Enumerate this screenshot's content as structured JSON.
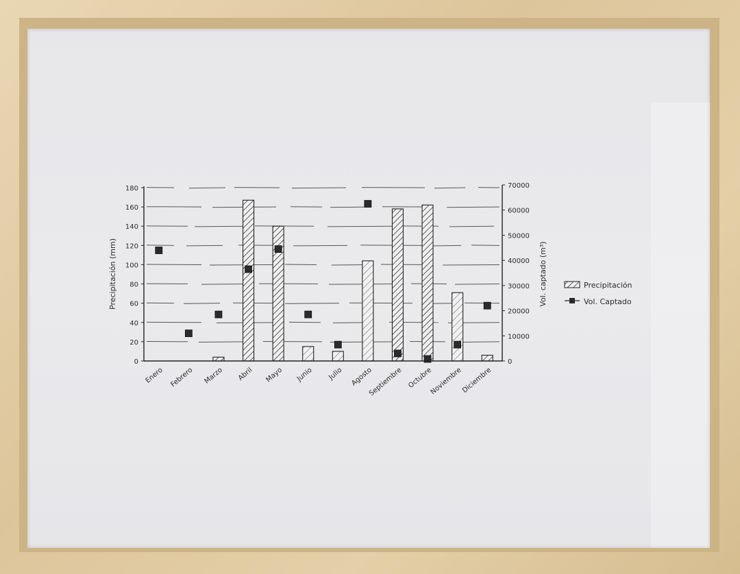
{
  "chart_data": {
    "type": "bar",
    "categories": [
      "Enero",
      "Febrero",
      "Marzo",
      "Abril",
      "Mayo",
      "Junio",
      "Julio",
      "Agosto",
      "Septiembre",
      "Octubre",
      "Noviembre",
      "Diciembre"
    ],
    "series": [
      {
        "name": "Precipitación",
        "kind": "bar",
        "axis": "left",
        "values": [
          0,
          0,
          4,
          167,
          140,
          15,
          10,
          104,
          158,
          162,
          71,
          6
        ]
      },
      {
        "name": "Vol. Captado",
        "kind": "scatter",
        "axis": "right",
        "values": [
          44000,
          11000,
          18500,
          36500,
          44500,
          18500,
          6500,
          62500,
          3000,
          800,
          6500,
          22000
        ]
      }
    ],
    "ylabel": "Precipitación (mm)",
    "y2label": "Vol. captado (m³)",
    "ylim": [
      0,
      180
    ],
    "y2lim": [
      0,
      70000
    ],
    "yticks": [
      "0",
      "20",
      "40",
      "60",
      "80",
      "100",
      "120",
      "140",
      "160",
      "180"
    ],
    "y2ticks": [
      "0",
      "10000",
      "20000",
      "30000",
      "40000",
      "50000",
      "60000",
      "70000"
    ],
    "legend": [
      {
        "label": "Precipitación",
        "symbol": "hatched-box"
      },
      {
        "label": "Vol. Captado",
        "symbol": "square-marker"
      }
    ],
    "legend_position": "right",
    "grid": true,
    "colors": {
      "ink": "#2a2a2a",
      "paper": "#e8e8eb",
      "frame": "#dfc9a0"
    }
  }
}
